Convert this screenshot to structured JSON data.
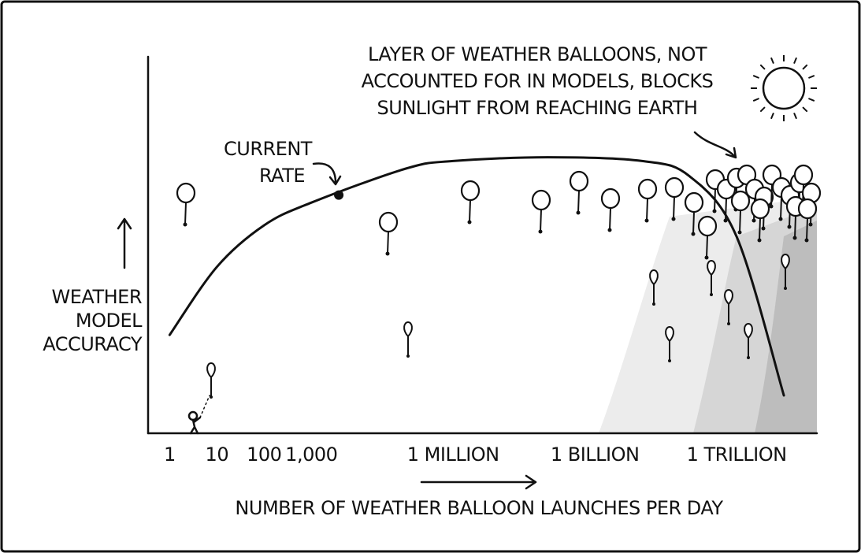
{
  "chart_data": {
    "type": "line",
    "xscale": "log",
    "xlabel": "NUMBER OF WEATHER BALLOON LAUNCHES PER DAY",
    "ylabel": [
      "WEATHER",
      "MODEL",
      "ACCURACY"
    ],
    "xlim": [
      0.35,
      50000000000000
    ],
    "ylim": [
      0,
      100
    ],
    "xticks": [
      1,
      10,
      100,
      {
        "value": 1000,
        "label": "1,000"
      },
      {
        "value": 1000000,
        "label": "1 MILLION"
      },
      {
        "value": 1000000000,
        "label": "1 BILLION"
      },
      {
        "value": 1000000000000,
        "label": "1 TRILLION"
      }
    ],
    "x": [
      1,
      10,
      100,
      1000,
      100000,
      1000000,
      100000000,
      10000000000,
      100000000000,
      1000000000000,
      10000000000000
    ],
    "values": [
      26,
      44,
      55,
      61,
      70,
      72,
      73,
      72,
      68,
      52,
      10
    ],
    "color": "#111111",
    "annotations": [
      {
        "lines": [
          "CURRENT",
          "RATE"
        ],
        "x": 3800,
        "y": 63
      },
      {
        "lines": [
          "LAYER OF WEATHER BALLOONS, NOT",
          "ACCOUNTED FOR IN MODELS, BLOCKS",
          "SUNLIGHT FROM REACHING EARTH"
        ]
      }
    ]
  }
}
